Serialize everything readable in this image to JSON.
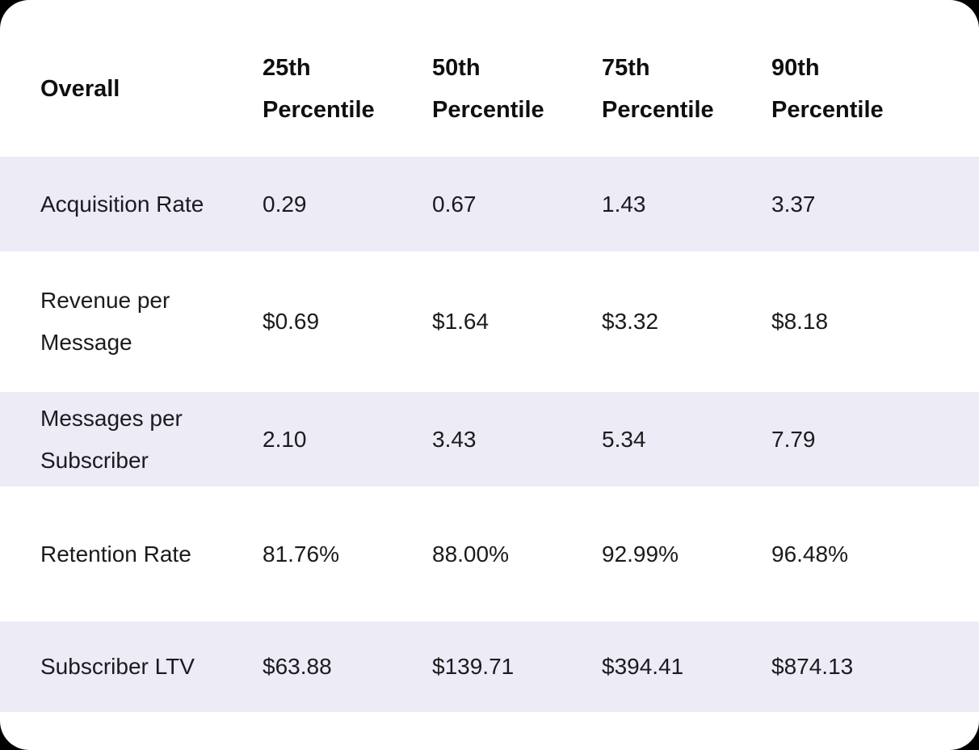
{
  "colors": {
    "page_background": "#000000",
    "card_background": "#FFFFFF",
    "stripe": "#ECEBF6",
    "header_text": "#0F0F12",
    "body_text": "#1B1B1F"
  },
  "chart_data": {
    "type": "table",
    "header_column": "Overall",
    "columns": [
      "25th Percentile",
      "50th Percentile",
      "75th Percentile",
      "90th Percentile"
    ],
    "rows": [
      {
        "metric": "Acquisition Rate",
        "values": [
          "0.29",
          "0.67",
          "1.43",
          "3.37"
        ]
      },
      {
        "metric": "Revenue per Message",
        "values": [
          "$0.69",
          "$1.64",
          "$3.32",
          "$8.18"
        ]
      },
      {
        "metric": "Messages per Subscriber",
        "values": [
          "2.10",
          "3.43",
          "5.34",
          "7.79"
        ]
      },
      {
        "metric": "Retention Rate",
        "values": [
          "81.76%",
          "88.00%",
          "92.99%",
          "96.48%"
        ]
      },
      {
        "metric": "Subscriber LTV",
        "values": [
          "$63.88",
          "$139.71",
          "$394.41",
          "$874.13"
        ]
      }
    ]
  }
}
